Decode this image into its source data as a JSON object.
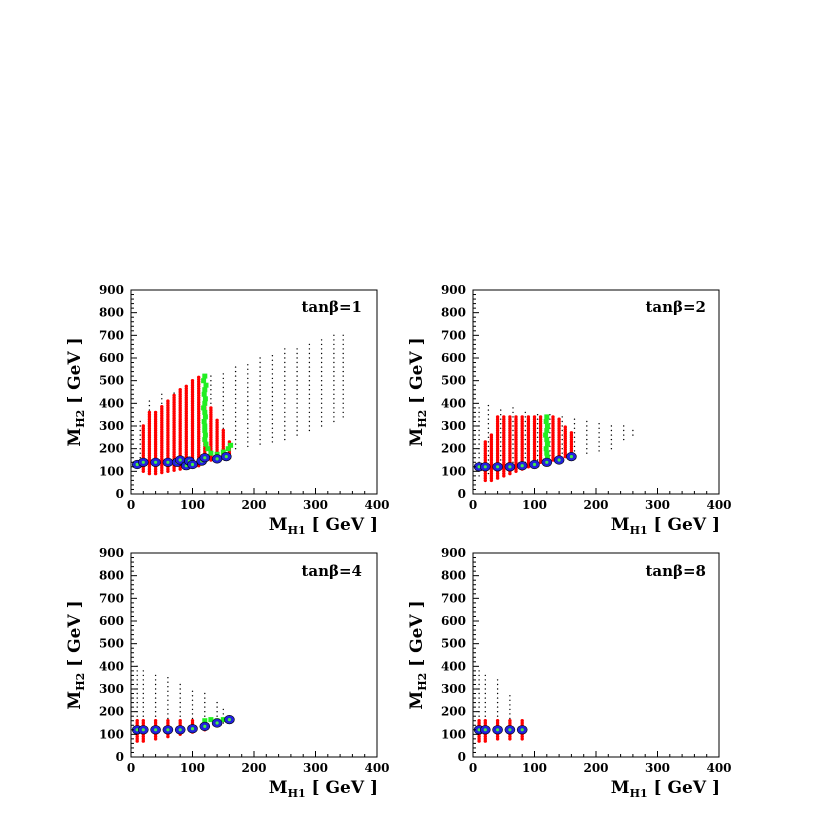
{
  "figure": {
    "colors": {
      "allowed_points": "#000000",
      "red_points": "#ff0000",
      "green_points": "#22ee22",
      "circle_fill": "#2222dd",
      "circle_center": "#44ee44"
    }
  },
  "chart_data": [
    {
      "type": "scatter",
      "title": "tanβ=1",
      "xlabel": "M_H1 [ GeV ]",
      "ylabel": "M_H2 [ GeV ]",
      "xlim": [
        0,
        400
      ],
      "ylim": [
        0,
        900
      ],
      "xticks": [
        "0",
        "100",
        "200",
        "300",
        "400"
      ],
      "yticks": [
        "0",
        "100",
        "200",
        "300",
        "400",
        "500",
        "600",
        "700",
        "800",
        "900"
      ],
      "series": [
        {
          "role": "black-grid",
          "color": "#000000",
          "bands": [
            [
              15,
              160,
              330
            ],
            [
              30,
              150,
              420
            ],
            [
              50,
              160,
              440
            ],
            [
              70,
              165,
              460
            ],
            [
              90,
              170,
              480
            ],
            [
              110,
              175,
              500
            ],
            [
              130,
              180,
              520
            ],
            [
              150,
              190,
              540
            ],
            [
              170,
              200,
              560
            ],
            [
              190,
              210,
              580
            ],
            [
              210,
              220,
              600
            ],
            [
              230,
              230,
              620
            ],
            [
              250,
              240,
              640
            ],
            [
              270,
              260,
              650
            ],
            [
              290,
              280,
              670
            ],
            [
              310,
              300,
              680
            ],
            [
              330,
              320,
              700
            ],
            [
              345,
              340,
              700
            ]
          ]
        },
        {
          "role": "red",
          "color": "#ff0000",
          "bands": [
            [
              20,
              100,
              300
            ],
            [
              30,
              90,
              360
            ],
            [
              40,
              90,
              360
            ],
            [
              50,
              95,
              390
            ],
            [
              60,
              100,
              410
            ],
            [
              70,
              105,
              440
            ],
            [
              80,
              110,
              460
            ],
            [
              90,
              115,
              480
            ],
            [
              100,
              120,
              500
            ],
            [
              110,
              125,
              520
            ],
            [
              120,
              140,
              420
            ],
            [
              130,
              150,
              380
            ],
            [
              140,
              155,
              330
            ],
            [
              150,
              160,
              280
            ],
            [
              160,
              170,
              230
            ]
          ]
        },
        {
          "role": "green",
          "color": "#22ee22",
          "points": [
            [
              120,
              520
            ],
            [
              118,
              500
            ],
            [
              122,
              480
            ],
            [
              120,
              460
            ],
            [
              119,
              440
            ],
            [
              121,
              420
            ],
            [
              120,
              400
            ],
            [
              118,
              380
            ],
            [
              120,
              360
            ],
            [
              121,
              340
            ],
            [
              119,
              320
            ],
            [
              120,
              300
            ],
            [
              120,
              280
            ],
            [
              121,
              260
            ],
            [
              120,
              240
            ],
            [
              122,
              220
            ],
            [
              125,
              200
            ],
            [
              130,
              180
            ],
            [
              140,
              175
            ],
            [
              150,
              185
            ],
            [
              158,
              200
            ],
            [
              162,
              215
            ]
          ]
        },
        {
          "role": "blue-circles",
          "color": "#2222dd",
          "points": [
            [
              10,
              130
            ],
            [
              20,
              140
            ],
            [
              40,
              140
            ],
            [
              60,
              140
            ],
            [
              75,
              140
            ],
            [
              80,
              150
            ],
            [
              90,
              125
            ],
            [
              95,
              145
            ],
            [
              100,
              130
            ],
            [
              115,
              145
            ],
            [
              120,
              160
            ],
            [
              140,
              155
            ],
            [
              155,
              165
            ]
          ]
        }
      ]
    },
    {
      "type": "scatter",
      "title": "tanβ=2",
      "xlabel": "M_H1 [ GeV ]",
      "ylabel": "M_H2 [ GeV ]",
      "xlim": [
        0,
        400
      ],
      "ylim": [
        0,
        900
      ],
      "xticks": [
        "0",
        "100",
        "200",
        "300",
        "400"
      ],
      "yticks": [
        "0",
        "100",
        "200",
        "300",
        "400",
        "500",
        "600",
        "700",
        "800",
        "900"
      ],
      "series": [
        {
          "role": "black-grid",
          "color": "#000000",
          "bands": [
            [
              10,
              80,
              390
            ],
            [
              25,
              90,
              390
            ],
            [
              45,
              130,
              380
            ],
            [
              65,
              140,
              380
            ],
            [
              85,
              140,
              370
            ],
            [
              105,
              150,
              360
            ],
            [
              125,
              150,
              350
            ],
            [
              145,
              160,
              340
            ],
            [
              165,
              170,
              340
            ],
            [
              185,
              180,
              330
            ],
            [
              205,
              190,
              320
            ],
            [
              225,
              200,
              310
            ],
            [
              245,
              240,
              300
            ],
            [
              260,
              260,
              290
            ]
          ]
        },
        {
          "role": "red",
          "color": "#ff0000",
          "bands": [
            [
              20,
              60,
              230
            ],
            [
              30,
              60,
              260
            ],
            [
              40,
              70,
              340
            ],
            [
              50,
              80,
              340
            ],
            [
              60,
              90,
              340
            ],
            [
              70,
              100,
              340
            ],
            [
              80,
              110,
              340
            ],
            [
              90,
              120,
              340
            ],
            [
              100,
              130,
              340
            ],
            [
              110,
              140,
              340
            ],
            [
              130,
              150,
              340
            ],
            [
              140,
              160,
              330
            ],
            [
              150,
              165,
              300
            ],
            [
              160,
              170,
              270
            ]
          ]
        },
        {
          "role": "green",
          "color": "#22ee22",
          "points": [
            [
              120,
              340
            ],
            [
              119,
              320
            ],
            [
              121,
              300
            ],
            [
              120,
              280
            ],
            [
              118,
              260
            ],
            [
              120,
              240
            ],
            [
              121,
              220
            ],
            [
              119,
              200
            ],
            [
              120,
              180
            ],
            [
              121,
              160
            ],
            [
              118,
              145
            ]
          ]
        },
        {
          "role": "blue-circles",
          "color": "#2222dd",
          "points": [
            [
              10,
              120
            ],
            [
              20,
              120
            ],
            [
              40,
              120
            ],
            [
              60,
              120
            ],
            [
              80,
              125
            ],
            [
              100,
              130
            ],
            [
              120,
              140
            ],
            [
              140,
              150
            ],
            [
              160,
              165
            ]
          ]
        }
      ]
    },
    {
      "type": "scatter",
      "title": "tanβ=4",
      "xlabel": "M_H1 [ GeV ]",
      "ylabel": "M_H2 [ GeV ]",
      "xlim": [
        0,
        400
      ],
      "ylim": [
        0,
        900
      ],
      "xticks": [
        "0",
        "100",
        "200",
        "300",
        "400"
      ],
      "yticks": [
        "0",
        "100",
        "200",
        "300",
        "400",
        "500",
        "600",
        "700",
        "800",
        "900"
      ],
      "series": [
        {
          "role": "black-grid",
          "color": "#000000",
          "bands": [
            [
              10,
              80,
              400
            ],
            [
              20,
              80,
              390
            ],
            [
              40,
              80,
              370
            ],
            [
              60,
              90,
              360
            ],
            [
              80,
              100,
              320
            ],
            [
              100,
              110,
              300
            ],
            [
              120,
              120,
              280
            ],
            [
              140,
              140,
              250
            ],
            [
              150,
              150,
              220
            ]
          ]
        },
        {
          "role": "red",
          "color": "#ff0000",
          "bands": [
            [
              10,
              70,
              160
            ],
            [
              20,
              70,
              160
            ],
            [
              40,
              80,
              160
            ],
            [
              60,
              90,
              160
            ],
            [
              80,
              100,
              160
            ],
            [
              100,
              110,
              160
            ],
            [
              120,
              120,
              160
            ]
          ]
        },
        {
          "role": "green",
          "color": "#22ee22",
          "points": [
            [
              120,
              160
            ],
            [
              130,
              165
            ],
            [
              140,
              160
            ],
            [
              150,
              165
            ]
          ]
        },
        {
          "role": "blue-circles",
          "color": "#2222dd",
          "points": [
            [
              10,
              120
            ],
            [
              20,
              120
            ],
            [
              40,
              120
            ],
            [
              60,
              120
            ],
            [
              80,
              120
            ],
            [
              100,
              125
            ],
            [
              120,
              135
            ],
            [
              140,
              150
            ],
            [
              160,
              165
            ]
          ]
        }
      ]
    },
    {
      "type": "scatter",
      "title": "tanβ=8",
      "xlabel": "M_H1 [ GeV ]",
      "ylabel": "M_H2 [ GeV ]",
      "xlim": [
        0,
        400
      ],
      "ylim": [
        0,
        900
      ],
      "xticks": [
        "0",
        "100",
        "200",
        "300",
        "400"
      ],
      "yticks": [
        "0",
        "100",
        "200",
        "300",
        "400",
        "500",
        "600",
        "700",
        "800",
        "900"
      ],
      "series": [
        {
          "role": "black-grid",
          "color": "#000000",
          "bands": [
            [
              10,
              80,
              380
            ],
            [
              20,
              80,
              370
            ],
            [
              40,
              80,
              340
            ],
            [
              60,
              90,
              280
            ],
            [
              80,
              100,
              160
            ]
          ]
        },
        {
          "role": "red",
          "color": "#ff0000",
          "bands": [
            [
              10,
              70,
              160
            ],
            [
              20,
              70,
              160
            ],
            [
              40,
              80,
              160
            ],
            [
              60,
              80,
              160
            ],
            [
              80,
              80,
              160
            ]
          ]
        },
        {
          "role": "green",
          "color": "#22ee22",
          "points": []
        },
        {
          "role": "blue-circles",
          "color": "#2222dd",
          "points": [
            [
              10,
              120
            ],
            [
              20,
              120
            ],
            [
              40,
              120
            ],
            [
              60,
              120
            ],
            [
              80,
              120
            ]
          ]
        }
      ]
    }
  ]
}
